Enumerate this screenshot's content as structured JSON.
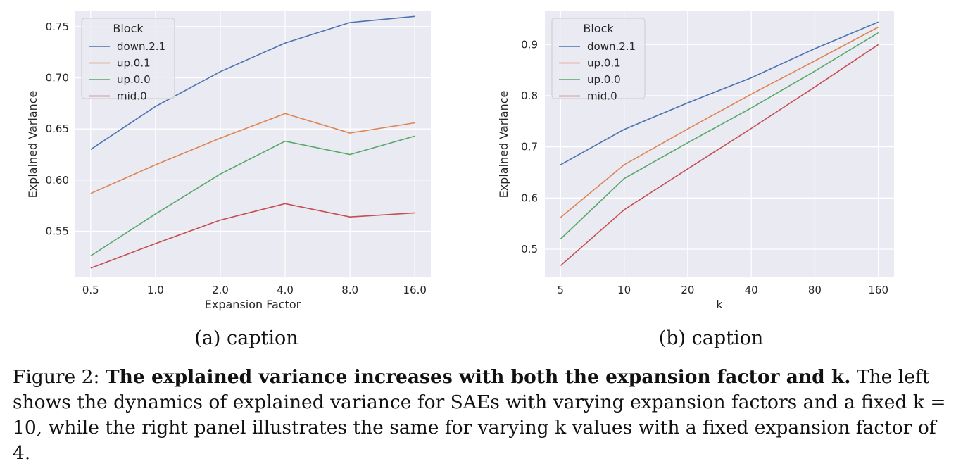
{
  "chart_data": [
    {
      "type": "line",
      "title": "",
      "xlabel": "Expansion Factor",
      "ylabel": "Explained Variance",
      "categories": [
        "0.5",
        "1.0",
        "2.0",
        "4.0",
        "8.0",
        "16.0"
      ],
      "ylim": [
        0.505,
        0.765
      ],
      "yticks": [
        "0.55",
        "0.60",
        "0.65",
        "0.70",
        "0.75"
      ],
      "legend": {
        "title": "Block",
        "placement": "top-left"
      },
      "grid": true,
      "series": [
        {
          "name": "down.2.1",
          "color": "#4c72b0",
          "values": [
            0.63,
            0.672,
            0.706,
            0.734,
            0.754,
            0.76
          ]
        },
        {
          "name": "up.0.1",
          "color": "#dd8452",
          "values": [
            0.587,
            0.615,
            0.641,
            0.665,
            0.646,
            0.656
          ]
        },
        {
          "name": "up.0.0",
          "color": "#55a868",
          "values": [
            0.526,
            0.567,
            0.606,
            0.638,
            0.625,
            0.643
          ]
        },
        {
          "name": "mid.0",
          "color": "#c44e52",
          "values": [
            0.514,
            0.538,
            0.561,
            0.577,
            0.564,
            0.568
          ]
        }
      ]
    },
    {
      "type": "line",
      "title": "",
      "xlabel": "k",
      "ylabel": "Explained Variance",
      "categories": [
        "5",
        "10",
        "20",
        "40",
        "80",
        "160"
      ],
      "ylim": [
        0.445,
        0.965
      ],
      "yticks": [
        "0.5",
        "0.6",
        "0.7",
        "0.8",
        "0.9"
      ],
      "legend": {
        "title": "Block",
        "placement": "top-left"
      },
      "grid": true,
      "series": [
        {
          "name": "down.2.1",
          "color": "#4c72b0",
          "values": [
            0.665,
            0.734,
            0.786,
            0.835,
            0.892,
            0.944
          ]
        },
        {
          "name": "up.0.1",
          "color": "#dd8452",
          "values": [
            0.562,
            0.665,
            0.735,
            0.803,
            0.868,
            0.934
          ]
        },
        {
          "name": "up.0.0",
          "color": "#55a868",
          "values": [
            0.52,
            0.638,
            0.708,
            0.776,
            0.848,
            0.923
          ]
        },
        {
          "name": "mid.0",
          "color": "#c44e52",
          "values": [
            0.468,
            0.577,
            0.657,
            0.736,
            0.817,
            0.9
          ]
        }
      ]
    }
  ],
  "subcaptions": [
    "(a) caption",
    "(b) caption"
  ],
  "figure_caption": {
    "label": "Figure 2: ",
    "bold_part": "The explained variance increases with both the expansion factor and k.",
    "rest": "The left shows the dynamics of explained variance for SAEs with varying expansion factors and a fixed k = 10, while the right panel illustrates the same for varying k values with a fixed expansion factor of 4."
  }
}
